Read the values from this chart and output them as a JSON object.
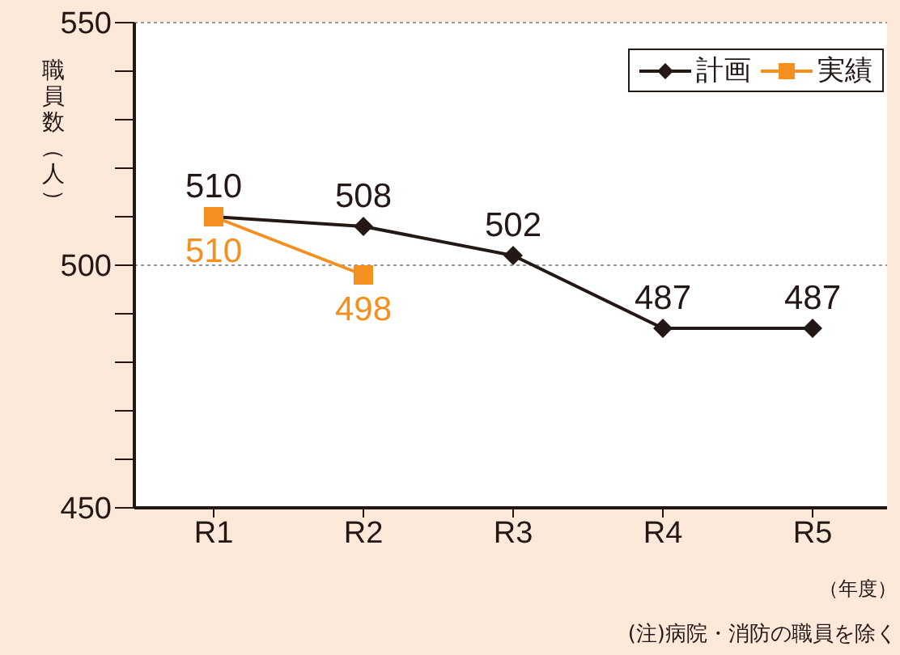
{
  "chart_data": {
    "type": "line",
    "ylabel": "職員数（人）",
    "xlabel": "（年度）",
    "categories": [
      "R1",
      "R2",
      "R3",
      "R4",
      "R5"
    ],
    "series": [
      {
        "name": "計画",
        "color": "#231815",
        "values": [
          510,
          508,
          502,
          487,
          487
        ],
        "marker": "diamond"
      },
      {
        "name": "実績",
        "color": "#f39020",
        "values": [
          510,
          498,
          null,
          null,
          null
        ],
        "marker": "square"
      }
    ],
    "ylim": [
      450,
      550
    ],
    "yticks": [
      450,
      {
        "value": 460,
        "label": null
      },
      {
        "value": 470,
        "label": null
      },
      {
        "value": 480,
        "label": null
      },
      {
        "value": 490,
        "label": null
      },
      500,
      {
        "value": 510,
        "label": null
      },
      {
        "value": 520,
        "label": null
      },
      {
        "value": 530,
        "label": null
      },
      {
        "value": 540,
        "label": null
      },
      550
    ],
    "grid": "y",
    "legend": "top right",
    "data_labels": true,
    "line_style": "solid",
    "annotations": [
      "(注)病院・消防の職員を除く"
    ]
  }
}
